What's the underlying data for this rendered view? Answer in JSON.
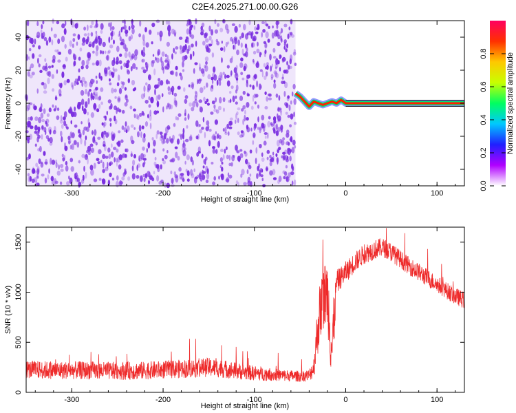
{
  "title": "C2E4.2025.271.00.00.G26",
  "colors": {
    "snr_line": "#ee2a2a",
    "spectrum_dots": "#7a2ee0",
    "colormap": [
      "#ffffff",
      "#b000ff",
      "#2020ff",
      "#00c8ff",
      "#00ff60",
      "#c8ff00",
      "#ffc800",
      "#ff3000",
      "#ff0060"
    ]
  },
  "chart_data": [
    {
      "type": "heatmap",
      "name": "spectrogram",
      "xlabel": "Height of straight line (km)",
      "ylabel": "Frequency (Hz)",
      "xlim": [
        -350,
        130
      ],
      "ylim": [
        -50,
        50
      ],
      "x_ticks": [
        -300,
        -200,
        -100,
        0,
        100
      ],
      "y_ticks": [
        -40,
        -20,
        0,
        20,
        40
      ],
      "noise_region": {
        "x_range": [
          -350,
          -55
        ],
        "y_range": [
          -50,
          50
        ],
        "description": ""
      },
      "signal_track": {
        "x": [
          -55,
          -50,
          -45,
          -40,
          -35,
          -30,
          -25,
          -20,
          -15,
          -10,
          -5,
          0,
          20,
          50,
          80,
          100,
          130
        ],
        "frequency": [
          6,
          4,
          1,
          -2,
          1,
          0,
          -1,
          0,
          1,
          0,
          2,
          0,
          0,
          0,
          0,
          0,
          0
        ]
      },
      "colorbar": {
        "label": "Normalized spectral amplitude",
        "range": [
          0,
          1
        ],
        "ticks": [
          "0.0",
          "0.2",
          "0.4",
          "0.6",
          "0.8"
        ]
      }
    },
    {
      "type": "line",
      "name": "snr",
      "xlabel": "Height of straight line (km)",
      "ylabel": "SNR (10 * v/v)",
      "xlim": [
        -350,
        130
      ],
      "ylim": [
        0,
        1650
      ],
      "x_ticks": [
        -300,
        -200,
        -100,
        0,
        100
      ],
      "y_ticks": [
        0,
        500,
        1000,
        1500
      ],
      "series": [
        {
          "x": [
            -350,
            -320,
            -290,
            -260,
            -230,
            -200,
            -170,
            -150,
            -130,
            -110,
            -90,
            -70,
            -50,
            -40,
            -35,
            -30,
            -25,
            -20,
            -15,
            -10,
            -5,
            0,
            10,
            20,
            30,
            40,
            50,
            60,
            70,
            80,
            90,
            100,
            110,
            120,
            130
          ],
          "y": [
            230,
            220,
            220,
            215,
            215,
            225,
            240,
            250,
            230,
            200,
            185,
            170,
            160,
            170,
            250,
            700,
            950,
            1000,
            400,
            1100,
            1150,
            1200,
            1300,
            1380,
            1420,
            1450,
            1400,
            1330,
            1260,
            1200,
            1140,
            1080,
            1020,
            960,
            920
          ],
          "spread": [
            90,
            90,
            90,
            90,
            90,
            90,
            95,
            95,
            90,
            80,
            70,
            60,
            55,
            60,
            110,
            300,
            320,
            350,
            400,
            120,
            110,
            110,
            100,
            100,
            100,
            95,
            95,
            90,
            90,
            90,
            90,
            85,
            85,
            85,
            85
          ]
        }
      ]
    }
  ]
}
